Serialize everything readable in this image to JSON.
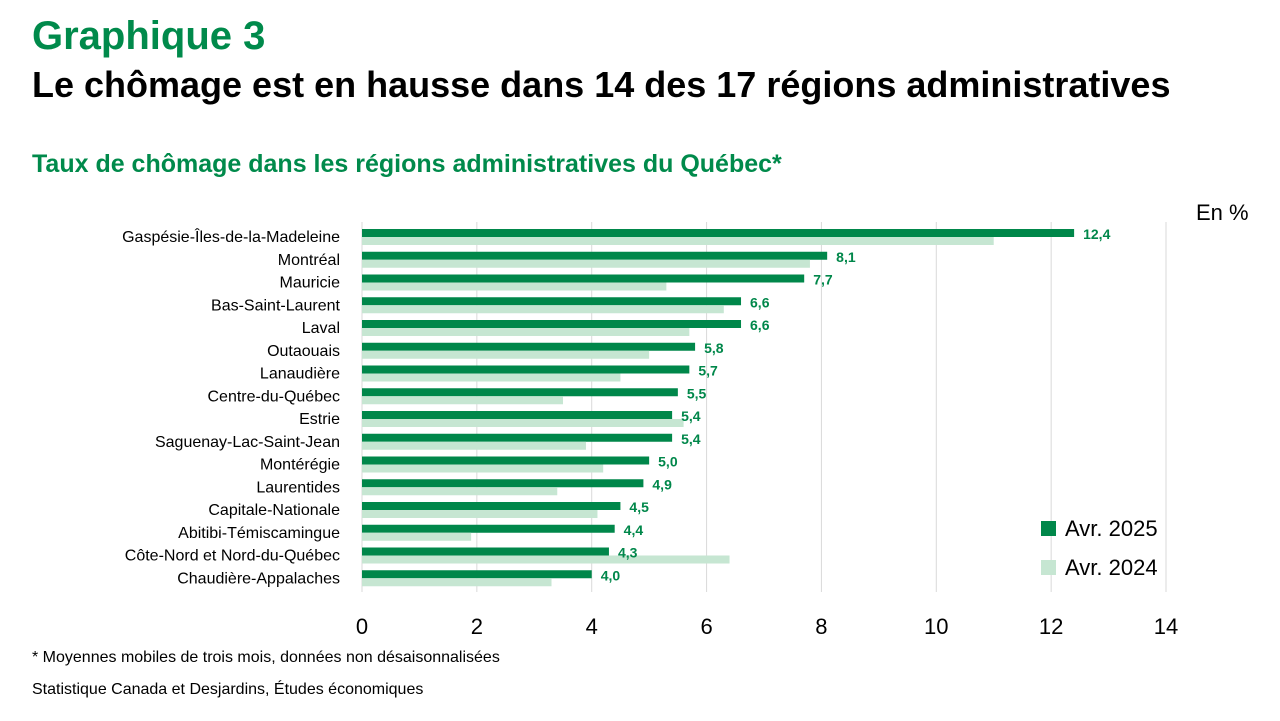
{
  "header": {
    "graph_label": "Graphique 3",
    "title": "Le chômage est en hausse dans 14 des 17 régions administratives"
  },
  "chart_data": {
    "type": "bar",
    "orientation": "horizontal",
    "title": "Taux de chômage dans les régions administratives du Québec*",
    "unit_label": "En %",
    "categories": [
      "Gaspésie-Îles-de-la-Madeleine",
      "Montréal",
      "Mauricie",
      "Bas-Saint-Laurent",
      "Laval",
      "Outaouais",
      "Lanaudière",
      "Centre-du-Québec",
      "Estrie",
      "Saguenay-Lac-Saint-Jean",
      "Montérégie",
      "Laurentides",
      "Capitale-Nationale",
      "Abitibi-Témiscamingue",
      "Côte-Nord et Nord-du-Québec",
      "Chaudière-Appalaches"
    ],
    "series": [
      {
        "name": "Avr. 2025",
        "color": "#00874a",
        "values": [
          12.4,
          8.1,
          7.7,
          6.6,
          6.6,
          5.8,
          5.7,
          5.5,
          5.4,
          5.4,
          5.0,
          4.9,
          4.5,
          4.4,
          4.3,
          4.0
        ],
        "data_labels": [
          "12,4",
          "8,1",
          "7,7",
          "6,6",
          "6,6",
          "5,8",
          "5,7",
          "5,5",
          "5,4",
          "5,4",
          "5,0",
          "4,9",
          "4,5",
          "4,4",
          "4,3",
          "4,0"
        ]
      },
      {
        "name": "Avr. 2024",
        "color": "#c6e6d2",
        "values": [
          11.0,
          7.8,
          5.3,
          6.3,
          5.7,
          5.0,
          4.5,
          3.5,
          5.6,
          3.9,
          4.2,
          3.4,
          4.1,
          1.9,
          6.4,
          3.3
        ]
      }
    ],
    "xlim": [
      0,
      14
    ],
    "x_ticks": [
      0,
      2,
      4,
      6,
      8,
      10,
      12,
      14
    ],
    "grid": "vertical",
    "legend_position": "bottom-right"
  },
  "notes": {
    "footnote": "* Moyennes mobiles de trois mois, données non désaisonnalisées",
    "source": "Statistique Canada et Desjardins, Études économiques"
  }
}
